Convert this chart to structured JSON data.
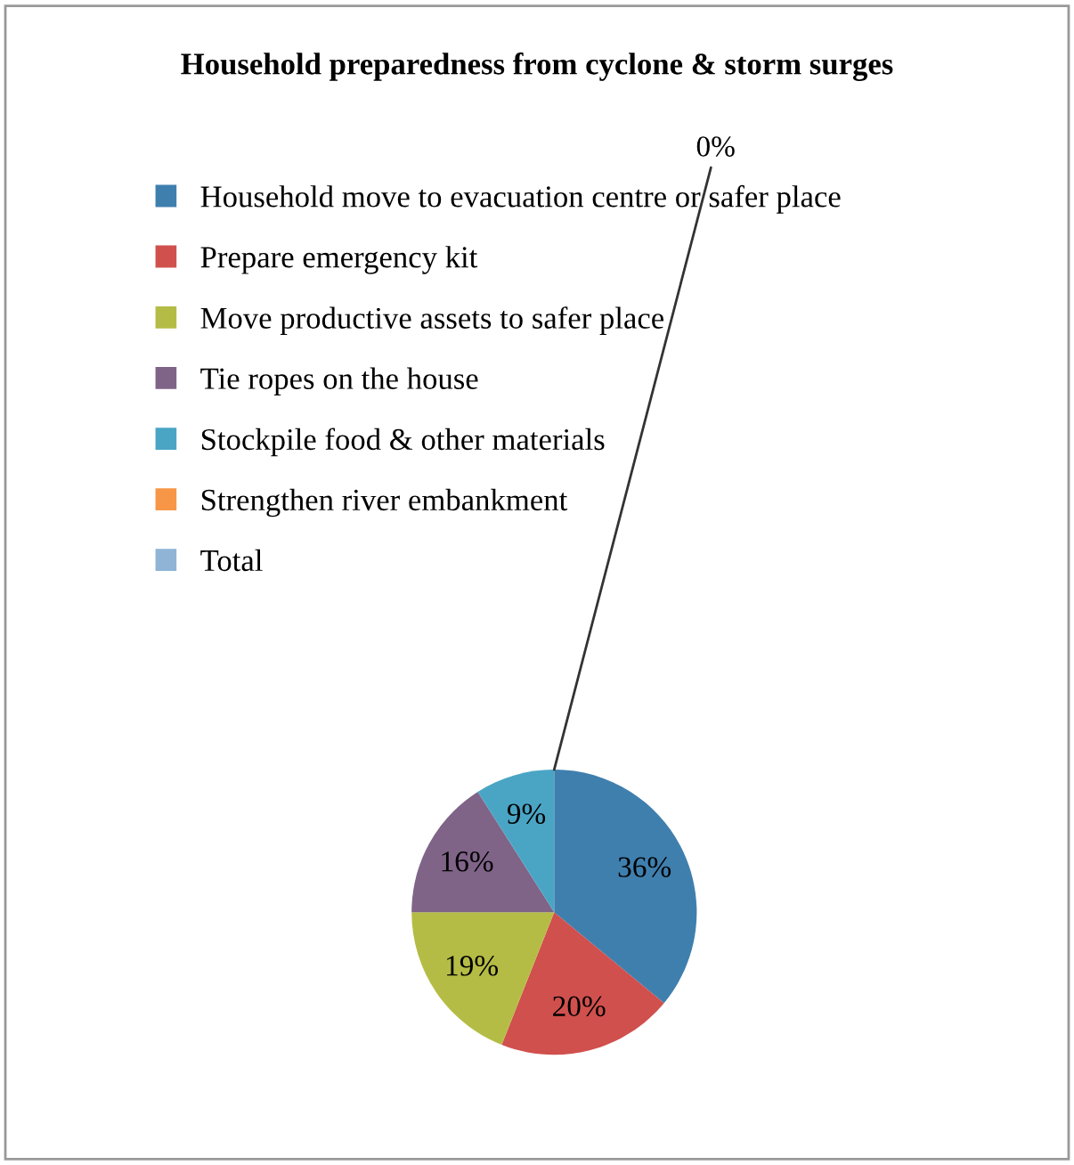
{
  "chart_data": {
    "type": "pie",
    "title": "Household preparedness from cyclone & storm surges",
    "categories": [
      "Household move to evacuation centre or safer place",
      "Prepare emergency kit",
      "Move productive assets to safer place",
      "Tie ropes on the house",
      "Stockpile food & other materials",
      "Strengthen river embankment",
      "Total"
    ],
    "values": [
      36,
      20,
      19,
      16,
      9,
      0,
      0
    ],
    "colors": [
      "#3f7fae",
      "#d0504d",
      "#b5bc45",
      "#7f6488",
      "#4aa5c5",
      "#f79646",
      "#8fb4d6"
    ],
    "value_labels": [
      "36%",
      "20%",
      "19%",
      "16%",
      "9%",
      "0%",
      null
    ],
    "legend": "top left"
  }
}
